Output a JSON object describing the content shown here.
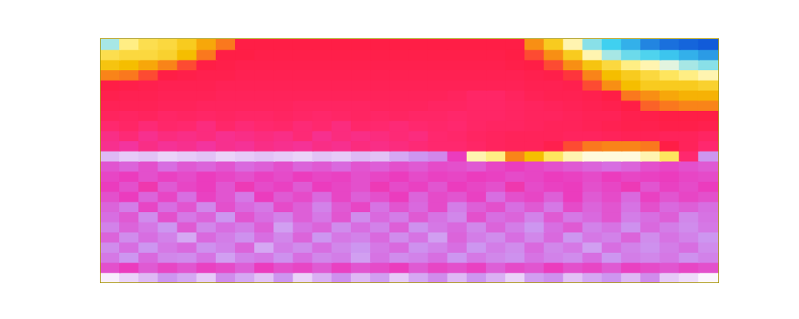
{
  "chart_data": {
    "type": "heatmap",
    "tick_labels": false,
    "grid": false,
    "zlim": [
      0,
      100
    ],
    "cells": [
      [
        22,
        32,
        35,
        36,
        38,
        42,
        46,
        50,
        50,
        50,
        50,
        50,
        50,
        50,
        50,
        50,
        50,
        50,
        50,
        50,
        50,
        50,
        44,
        38,
        30,
        20,
        15,
        12,
        8,
        6,
        5,
        4
      ],
      [
        35,
        36,
        36,
        37,
        40,
        46,
        50,
        50,
        51,
        51,
        51,
        51,
        51,
        51,
        51,
        51,
        51,
        51,
        51,
        51,
        51,
        50,
        48,
        44,
        38,
        30,
        22,
        18,
        16,
        14,
        12,
        10
      ],
      [
        39,
        40,
        42,
        45,
        48,
        50,
        51,
        52,
        52,
        52,
        52,
        52,
        52,
        52,
        52,
        52,
        52,
        52,
        52,
        52,
        52,
        51,
        50,
        48,
        44,
        39,
        36,
        32,
        30,
        26,
        22,
        20
      ],
      [
        45,
        46,
        48,
        50,
        51,
        52,
        52,
        53,
        53,
        53,
        53,
        53,
        53,
        53,
        53,
        53,
        53,
        53,
        53,
        53,
        53,
        53,
        52,
        51,
        49,
        45,
        40,
        38,
        36,
        34,
        32,
        30
      ],
      [
        50,
        51,
        52,
        53,
        53,
        53,
        54,
        54,
        54,
        54,
        54,
        54,
        54,
        54,
        54,
        54,
        54,
        54,
        54,
        54,
        54,
        54,
        53,
        53,
        52,
        48,
        44,
        40,
        38,
        38,
        38,
        37
      ],
      [
        52,
        53,
        53,
        54,
        54,
        54,
        55,
        55,
        55,
        55,
        55,
        55,
        55,
        55,
        55,
        55,
        55,
        55,
        56,
        58,
        58,
        56,
        54,
        53,
        53,
        52,
        50,
        46,
        44,
        42,
        41,
        41
      ],
      [
        54,
        54,
        54,
        55,
        55,
        56,
        56,
        56,
        56,
        56,
        57,
        57,
        57,
        57,
        56,
        56,
        56,
        57,
        57,
        58,
        58,
        57,
        56,
        55,
        54,
        53,
        52,
        50,
        47,
        46,
        45,
        45
      ],
      [
        56,
        57,
        56,
        58,
        57,
        58,
        57,
        58,
        58,
        57,
        58,
        59,
        58,
        57,
        58,
        57,
        58,
        58,
        59,
        58,
        58,
        57,
        56,
        56,
        55,
        54,
        54,
        52,
        51,
        50,
        50,
        50
      ],
      [
        60,
        58,
        61,
        59,
        60,
        62,
        59,
        61,
        60,
        59,
        61,
        60,
        62,
        59,
        60,
        61,
        60,
        59,
        60,
        58,
        57,
        57,
        56,
        55,
        55,
        54,
        53,
        52,
        52,
        51,
        51,
        52
      ],
      [
        63,
        61,
        64,
        62,
        63,
        62,
        64,
        63,
        62,
        63,
        61,
        64,
        62,
        63,
        62,
        61,
        62,
        60,
        59,
        57,
        56,
        55,
        55,
        55,
        56,
        56,
        55,
        54,
        54,
        55,
        55,
        57
      ],
      [
        64,
        66,
        63,
        65,
        64,
        66,
        64,
        65,
        63,
        64,
        65,
        63,
        64,
        62,
        63,
        62,
        61,
        60,
        60,
        58,
        56,
        55,
        55,
        52,
        48,
        46,
        45,
        45,
        46,
        50,
        55,
        60
      ],
      [
        92,
        94,
        93,
        95,
        94,
        93,
        95,
        94,
        93,
        94,
        95,
        93,
        94,
        92,
        93,
        90,
        88,
        85,
        70,
        30,
        32,
        45,
        40,
        34,
        30,
        28,
        28,
        28,
        30,
        34,
        60,
        88
      ],
      [
        75,
        78,
        74,
        80,
        76,
        78,
        75,
        79,
        77,
        74,
        78,
        76,
        79,
        75,
        77,
        74,
        76,
        73,
        74,
        76,
        72,
        70,
        72,
        74,
        76,
        78,
        80,
        78,
        74,
        72,
        74,
        76
      ],
      [
        72,
        70,
        74,
        71,
        73,
        70,
        72,
        74,
        71,
        73,
        70,
        72,
        71,
        74,
        72,
        70,
        73,
        71,
        72,
        70,
        71,
        73,
        72,
        70,
        71,
        73,
        70,
        72,
        71,
        70,
        72,
        73
      ],
      [
        70,
        74,
        68,
        76,
        72,
        70,
        75,
        69,
        73,
        71,
        76,
        70,
        72,
        74,
        69,
        73,
        71,
        75,
        70,
        72,
        74,
        68,
        73,
        71,
        70,
        74,
        72,
        69,
        75,
        71,
        73,
        70
      ],
      [
        74,
        70,
        78,
        72,
        80,
        71,
        75,
        82,
        70,
        76,
        73,
        79,
        72,
        77,
        74,
        70,
        78,
        73,
        75,
        71,
        80,
        74,
        72,
        77,
        70,
        76,
        73,
        79,
        71,
        75,
        72,
        74
      ],
      [
        78,
        83,
        72,
        80,
        75,
        85,
        74,
        79,
        82,
        73,
        77,
        84,
        76,
        72,
        81,
        75,
        79,
        73,
        83,
        77,
        74,
        80,
        76,
        82,
        73,
        78,
        75,
        81,
        74,
        79,
        77,
        80
      ],
      [
        80,
        76,
        86,
        74,
        82,
        78,
        88,
        75,
        80,
        84,
        77,
        82,
        75,
        86,
        79,
        83,
        76,
        81,
        85,
        74,
        80,
        78,
        84,
        76,
        82,
        79,
        75,
        83,
        80,
        77,
        85,
        81
      ],
      [
        84,
        78,
        82,
        88,
        76,
        85,
        80,
        83,
        77,
        89,
        81,
        78,
        86,
        80,
        84,
        77,
        87,
        82,
        79,
        85,
        78,
        83,
        88,
        80,
        76,
        84,
        81,
        87,
        79,
        83,
        86,
        82
      ],
      [
        78,
        86,
        80,
        84,
        90,
        79,
        83,
        87,
        80,
        85,
        78,
        88,
        82,
        84,
        79,
        86,
        81,
        89,
        78,
        83,
        86,
        80,
        85,
        79,
        88,
        82,
        84,
        78,
        86,
        81,
        84,
        88
      ],
      [
        86,
        80,
        88,
        82,
        79,
        87,
        84,
        78,
        90,
        83,
        86,
        80,
        85,
        88,
        82,
        79,
        87,
        84,
        80,
        88,
        83,
        86,
        79,
        85,
        82,
        89,
        80,
        84,
        87,
        83,
        80,
        86
      ],
      [
        82,
        88,
        79,
        85,
        86,
        81,
        89,
        84,
        82,
        87,
        80,
        85,
        83,
        89,
        81,
        86,
        84,
        80,
        88,
        82,
        85,
        87,
        81,
        84,
        86,
        80,
        88,
        83,
        85,
        82,
        87,
        84
      ],
      [
        74,
        70,
        76,
        72,
        75,
        71,
        73,
        77,
        70,
        74,
        72,
        76,
        71,
        75,
        73,
        70,
        76,
        72,
        74,
        71,
        77,
        73,
        75,
        70,
        74,
        72,
        76,
        71,
        73,
        75,
        72,
        74
      ],
      [
        98,
        95,
        92,
        88,
        90,
        94,
        86,
        90,
        93,
        88,
        95,
        91,
        87,
        92,
        89,
        94,
        90,
        86,
        92,
        88,
        91,
        95,
        89,
        87,
        93,
        90,
        88,
        92,
        86,
        94,
        96,
        99
      ]
    ]
  }
}
